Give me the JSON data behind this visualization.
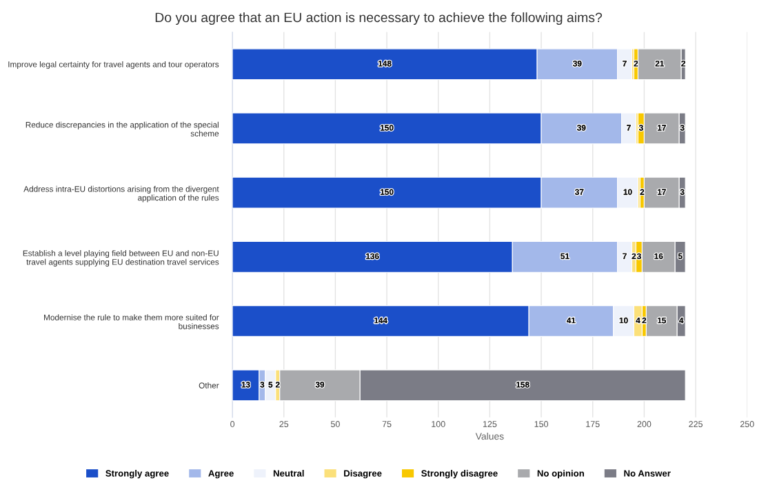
{
  "chart_data": {
    "type": "bar",
    "orientation": "horizontal",
    "stacked": true,
    "title": "Do you agree that an EU action is necessary to achieve the following aims?",
    "xlabel": "Values",
    "categories": [
      "Improve legal certainty for travel agents and tour operators",
      "Reduce discrepancies in the application of the special scheme",
      "Address intra-EU distortions arising from the divergent application of the rules",
      "Establish a level playing field between EU and non-EU travel agents supplying EU destination travel services",
      "Modernise the rule to make them more suited for businesses",
      "Other"
    ],
    "series": [
      {
        "name": "Strongly agree",
        "color": "#1b4fc9",
        "values": [
          148,
          150,
          150,
          136,
          144,
          13
        ],
        "value_labels": [
          "148",
          "150",
          "150",
          "136",
          "144",
          "13"
        ]
      },
      {
        "name": "Agree",
        "color": "#a3b8ea",
        "values": [
          39,
          39,
          37,
          51,
          41,
          3
        ],
        "value_labels": [
          "39",
          "39",
          "37",
          "51",
          "41",
          "3"
        ]
      },
      {
        "name": "Neutral",
        "color": "#eef2fb",
        "values": [
          7,
          7,
          10,
          7,
          10,
          5
        ],
        "value_labels": [
          "7",
          "7",
          "10",
          "7",
          "10",
          "5"
        ]
      },
      {
        "name": "Disagree",
        "color": "#fbe07a",
        "values": [
          1,
          1,
          1,
          2,
          4,
          2
        ],
        "value_labels": [
          null,
          null,
          null,
          "2",
          "4",
          "2"
        ]
      },
      {
        "name": "Strongly disagree",
        "color": "#f8c800",
        "values": [
          2,
          3,
          2,
          3,
          2,
          0
        ],
        "value_labels": [
          "2",
          "3",
          "2",
          "3",
          "2",
          null
        ]
      },
      {
        "name": "No opinion",
        "color": "#a9aaad",
        "values": [
          21,
          17,
          17,
          16,
          15,
          39
        ],
        "value_labels": [
          "21",
          "17",
          "17",
          "16",
          "15",
          "39"
        ]
      },
      {
        "name": "No Answer",
        "color": "#7b7c86",
        "values": [
          2,
          3,
          3,
          5,
          4,
          158
        ],
        "value_labels": [
          "2",
          "3",
          "3",
          "5",
          "4",
          "158"
        ]
      }
    ],
    "xlim": [
      0,
      250
    ],
    "xticks": [
      0,
      25,
      50,
      75,
      100,
      125,
      150,
      175,
      200,
      225,
      250
    ],
    "grid": "x",
    "legend": "bottom"
  }
}
